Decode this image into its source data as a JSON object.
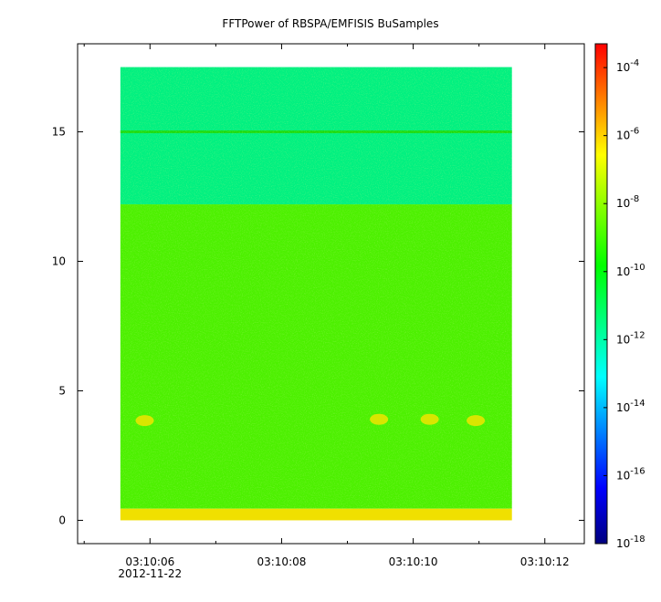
{
  "chart_data": {
    "type": "heatmap",
    "title": "FFTPower of RBSPA/EMFISIS  BuSamples",
    "xlabel": "",
    "ylabel": "",
    "x_axis": {
      "ticks": [
        {
          "label": "03:10:06",
          "sublabel": "2012-11-22",
          "value_s": 6
        },
        {
          "label": "03:10:08",
          "sublabel": "",
          "value_s": 8
        },
        {
          "label": "03:10:10",
          "sublabel": "",
          "value_s": 10
        },
        {
          "label": "03:10:12",
          "sublabel": "",
          "value_s": 12
        }
      ],
      "minor_ticks_s": [
        5,
        7,
        9,
        11
      ],
      "range_s": [
        4.9,
        12.6
      ],
      "data_range_s": [
        5.55,
        11.5
      ]
    },
    "y_axis": {
      "ticks": [
        0,
        5,
        10,
        15
      ],
      "range": [
        -0.9,
        18.4
      ],
      "data_range": [
        0,
        17.5
      ]
    },
    "colorbar": {
      "scale": "log",
      "range_exp": [
        -18,
        -3.3
      ],
      "ticks": [
        {
          "base": "10",
          "exp": "-4",
          "e": -4
        },
        {
          "base": "10",
          "exp": "-6",
          "e": -6
        },
        {
          "base": "10",
          "exp": "-8",
          "e": -8
        },
        {
          "base": "10",
          "exp": "-10",
          "e": -10
        },
        {
          "base": "10",
          "exp": "-12",
          "e": -12
        },
        {
          "base": "10",
          "exp": "-14",
          "e": -14
        },
        {
          "base": "10",
          "exp": "-16",
          "e": -16
        },
        {
          "base": "10",
          "exp": "-18",
          "e": -18
        }
      ],
      "colormap": [
        "#00007f",
        "#0000ff",
        "#0080ff",
        "#00ffff",
        "#00ff80",
        "#00ff00",
        "#80ff00",
        "#ffff00",
        "#ff8000",
        "#ff0000"
      ]
    },
    "bands": [
      {
        "y0": 12.2,
        "y1": 17.5,
        "log_power": -12.2,
        "color": "#00f080"
      },
      {
        "y0": 0.45,
        "y1": 12.2,
        "log_power": -10.6,
        "color": "#4cf000"
      },
      {
        "y0": 0.0,
        "y1": 0.45,
        "log_power": -8.8,
        "color": "#f0e000"
      }
    ],
    "lines": [
      {
        "y": 15.0,
        "log_power": -10.5,
        "color": "#20d800"
      }
    ],
    "blobs": [
      {
        "t": 5.92,
        "f": 3.85,
        "log_power": -9.0
      },
      {
        "t": 9.48,
        "f": 3.9,
        "log_power": -9.2
      },
      {
        "t": 10.25,
        "f": 3.9,
        "log_power": -9.0
      },
      {
        "t": 10.95,
        "f": 3.85,
        "log_power": -9.0
      }
    ]
  }
}
